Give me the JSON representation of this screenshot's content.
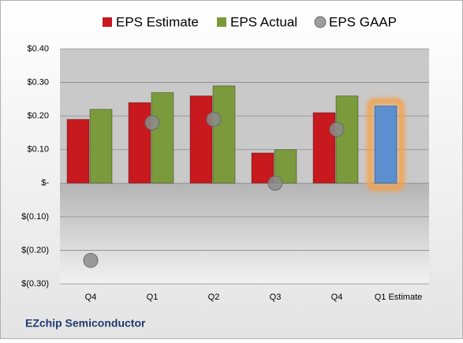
{
  "chart_data": {
    "type": "bar",
    "categories": [
      "Q4",
      "Q1",
      "Q2",
      "Q3",
      "Q4",
      "Q1 Estimate"
    ],
    "series": [
      {
        "name": "EPS Estimate",
        "color": "#c8191e",
        "values": [
          0.19,
          0.24,
          0.26,
          0.09,
          0.21,
          0.23
        ],
        "point_colors": [
          null,
          null,
          null,
          null,
          null,
          "#5b8fd0"
        ]
      },
      {
        "name": "EPS Actual",
        "color": "#7a9a3c",
        "values": [
          0.22,
          0.27,
          0.29,
          0.1,
          0.26,
          null
        ]
      },
      {
        "name": "EPS GAAP",
        "color": "#8c8c8c",
        "marker": "circle",
        "values": [
          -0.23,
          0.18,
          0.19,
          0.0,
          0.16,
          null
        ]
      }
    ],
    "ylim": [
      -0.3,
      0.4
    ],
    "yticks": [
      {
        "value": -0.3,
        "label": "$(0.30)"
      },
      {
        "value": -0.2,
        "label": "$(0.20)"
      },
      {
        "value": -0.1,
        "label": "$(0.10)"
      },
      {
        "value": 0,
        "label": "$-"
      },
      {
        "value": 0.1,
        "label": "$0.10"
      },
      {
        "value": 0.2,
        "label": "$0.20"
      },
      {
        "value": 0.3,
        "label": "$0.30"
      },
      {
        "value": 0.4,
        "label": "$0.40"
      }
    ],
    "grid": true,
    "legend": "top",
    "footer": "EZchip Semiconductor"
  }
}
